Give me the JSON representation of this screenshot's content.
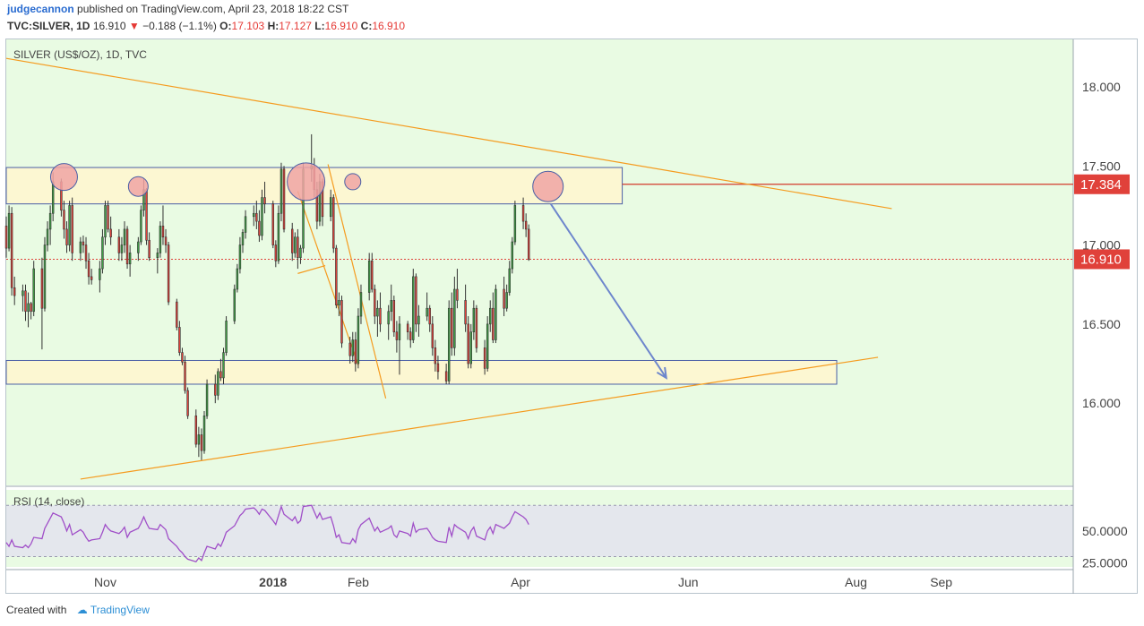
{
  "header": {
    "user": "judgecannon",
    "published": "published on TradingView.com, April 23, 2018 18:22 CST",
    "symbol_line": "TVC:SILVER, 1D",
    "last": "16.910",
    "change": "−0.188 (−1.1%)",
    "o_label": "O:",
    "o": "17.103",
    "h_label": "H:",
    "h": "17.127",
    "l_label": "L:",
    "l": "16.910",
    "c_label": "C:",
    "c": "16.910"
  },
  "footer": {
    "created_with": "Created with",
    "brand": "TradingView",
    "logo_icon": "tradingview-cloud-icon"
  },
  "colors": {
    "background": "#e9fbe3",
    "up_candle": "#3f9e45",
    "down_candle": "#e0413a",
    "trendline": "#f59b1f",
    "zone_fill": "#fcf7d2",
    "zone_border": "#4a5fa6",
    "resistance_line": "#d23b2b",
    "arrow": "#6d86cc",
    "circle_fill": "#f0a5a5",
    "rsi_line": "#a04fc8",
    "rsi_band": "#e4e7ed"
  },
  "chart_data": {
    "type": "candlestick",
    "title": "SILVER (US$/OZ), 1D, TVC",
    "y_ticks": [
      "18.000",
      "17.500",
      "17.000",
      "16.500",
      "16.000"
    ],
    "y_tick_values": [
      18.0,
      17.5,
      17.0,
      16.5,
      16.0
    ],
    "ylim": [
      15.48,
      18.3
    ],
    "x_ticks": [
      "Nov",
      "2018",
      "Feb",
      "Apr",
      "Jun",
      "Aug",
      "Sep"
    ],
    "x_tick_dates": [
      "2017-11-01",
      "2018-01-01",
      "2018-02-01",
      "2018-04-01",
      "2018-06-01",
      "2018-08-01",
      "2018-09-01"
    ],
    "date_range": [
      "2017-09-26",
      "2018-10-19"
    ],
    "price_labels": [
      {
        "value": 17.384,
        "text": "17.384",
        "color": "#e0413a"
      },
      {
        "value": 16.91,
        "text": "16.910",
        "color": "#e0413a"
      }
    ],
    "resistance_level": 17.384,
    "last_price": 16.91,
    "zones": [
      {
        "top": 17.49,
        "bottom": 17.26,
        "from": "2017-09-26",
        "to": "2018-05-08"
      },
      {
        "top": 16.27,
        "bottom": 16.12,
        "from": "2017-09-26",
        "to": "2018-07-25"
      }
    ],
    "trendlines": [
      {
        "from": [
          "2017-09-26",
          18.18
        ],
        "to": [
          "2018-08-14",
          17.23
        ]
      },
      {
        "from": [
          "2017-10-23",
          15.52
        ],
        "to": [
          "2018-08-09",
          16.29
        ]
      },
      {
        "from": [
          "2018-01-10",
          16.82
        ],
        "to": [
          "2018-01-20",
          16.87
        ]
      },
      {
        "from": [
          "2018-01-21",
          17.51
        ],
        "to": [
          "2018-02-11",
          16.03
        ]
      },
      {
        "from": [
          "2018-01-10",
          17.34
        ],
        "to": [
          "2018-02-01",
          16.24
        ]
      }
    ],
    "arrow": {
      "from": [
        "2018-04-12",
        17.26
      ],
      "to": [
        "2018-05-24",
        16.16
      ]
    },
    "circles": [
      {
        "date": "2017-10-17",
        "value": 17.43,
        "r": 15
      },
      {
        "date": "2017-11-13",
        "value": 17.37,
        "r": 11
      },
      {
        "date": "2018-01-13",
        "value": 17.4,
        "r": 21
      },
      {
        "date": "2018-01-30",
        "value": 17.4,
        "r": 9
      },
      {
        "date": "2018-04-11",
        "value": 17.37,
        "r": 17
      }
    ],
    "candles": {
      "start": "2017-09-26",
      "ohlc": [
        [
          17.12,
          17.18,
          16.92,
          16.98
        ],
        [
          16.98,
          17.25,
          16.96,
          17.2
        ],
        [
          17.2,
          17.24,
          16.68,
          16.73
        ],
        [
          16.73,
          16.8,
          16.62,
          16.68
        ],
        [
          16.68,
          16.75,
          16.58,
          16.71
        ],
        [
          16.71,
          16.75,
          16.52,
          16.58
        ],
        [
          16.58,
          16.7,
          16.48,
          16.63
        ],
        [
          16.63,
          16.64,
          16.53,
          16.58
        ],
        [
          16.58,
          16.9,
          16.55,
          16.85
        ],
        [
          16.85,
          16.92,
          16.34,
          16.6
        ],
        [
          16.6,
          17.05,
          16.58,
          17.0
        ],
        [
          17.0,
          17.15,
          16.96,
          17.1
        ],
        [
          17.1,
          17.25,
          17.0,
          17.2
        ],
        [
          17.2,
          17.46,
          17.15,
          17.4
        ],
        [
          17.4,
          17.42,
          17.18,
          17.22
        ],
        [
          17.22,
          17.28,
          17.04,
          17.1
        ],
        [
          17.1,
          17.15,
          16.95,
          17.0
        ],
        [
          17.0,
          17.28,
          16.96,
          17.25
        ],
        [
          17.25,
          17.3,
          16.9,
          16.95
        ],
        [
          16.95,
          17.05,
          16.9,
          17.02
        ],
        [
          17.02,
          17.06,
          16.95,
          17.0
        ],
        [
          17.0,
          17.05,
          16.85,
          16.9
        ],
        [
          16.9,
          16.95,
          16.75,
          16.8
        ],
        [
          16.8,
          16.85,
          16.75,
          16.78
        ],
        [
          16.78,
          16.9,
          16.7,
          16.85
        ],
        [
          16.85,
          17.1,
          16.82,
          17.05
        ],
        [
          17.05,
          17.28,
          17.0,
          17.25
        ],
        [
          17.25,
          17.28,
          17.08,
          17.1
        ],
        [
          17.1,
          17.18,
          17.0,
          17.05
        ],
        [
          17.05,
          17.1,
          16.9,
          16.95
        ],
        [
          16.95,
          17.05,
          16.9,
          17.0
        ],
        [
          17.0,
          17.15,
          16.95,
          17.1
        ],
        [
          17.1,
          17.12,
          16.85,
          16.88
        ],
        [
          16.88,
          17.0,
          16.8,
          16.95
        ],
        [
          16.95,
          17.05,
          16.9,
          17.02
        ],
        [
          17.02,
          17.25,
          17.0,
          17.22
        ],
        [
          17.22,
          17.42,
          17.18,
          17.35
        ],
        [
          17.35,
          17.36,
          17.0,
          17.03
        ],
        [
          17.03,
          17.08,
          16.9,
          16.92
        ],
        [
          16.92,
          16.98,
          16.82,
          16.95
        ],
        [
          16.95,
          17.15,
          16.92,
          17.12
        ],
        [
          17.12,
          17.25,
          17.0,
          17.05
        ],
        [
          17.05,
          17.1,
          16.95,
          17.0
        ],
        [
          17.0,
          17.02,
          16.62,
          16.64
        ],
        [
          16.64,
          16.66,
          16.46,
          16.48
        ],
        [
          16.48,
          16.52,
          16.3,
          16.32
        ],
        [
          16.32,
          16.35,
          16.24,
          16.26
        ],
        [
          16.26,
          16.3,
          16.06,
          16.08
        ],
        [
          16.08,
          16.1,
          15.9,
          15.92
        ],
        [
          15.92,
          15.96,
          15.72,
          15.74
        ],
        [
          15.74,
          15.85,
          15.66,
          15.8
        ],
        [
          15.8,
          15.84,
          15.64,
          15.7
        ],
        [
          15.7,
          15.95,
          15.68,
          15.92
        ],
        [
          15.92,
          16.15,
          15.9,
          16.12
        ],
        [
          16.12,
          16.18,
          16.0,
          16.05
        ],
        [
          16.05,
          16.22,
          16.02,
          16.2
        ],
        [
          16.2,
          16.28,
          16.14,
          16.16
        ],
        [
          16.16,
          16.35,
          16.12,
          16.32
        ],
        [
          16.32,
          16.55,
          16.3,
          16.52
        ],
        [
          16.52,
          16.75,
          16.5,
          16.72
        ],
        [
          16.72,
          16.88,
          16.7,
          16.85
        ],
        [
          16.85,
          17.05,
          16.82,
          17.0
        ],
        [
          17.0,
          17.1,
          16.95,
          17.08
        ],
        [
          17.08,
          17.22,
          17.04,
          17.18
        ],
        [
          17.18,
          17.25,
          17.12,
          17.2
        ],
        [
          17.2,
          17.28,
          17.1,
          17.15
        ],
        [
          17.15,
          17.22,
          17.02,
          17.06
        ],
        [
          17.06,
          17.35,
          17.03,
          17.3
        ],
        [
          17.3,
          17.4,
          17.2,
          17.26
        ],
        [
          17.26,
          17.28,
          16.98,
          17.0
        ],
        [
          17.0,
          17.03,
          16.86,
          16.9
        ],
        [
          16.9,
          17.25,
          16.88,
          17.2
        ],
        [
          17.2,
          17.52,
          17.15,
          17.48
        ],
        [
          17.48,
          17.5,
          17.08,
          17.1
        ],
        [
          17.1,
          17.14,
          16.9,
          16.95
        ],
        [
          16.95,
          17.08,
          16.92,
          17.05
        ],
        [
          17.05,
          17.1,
          16.85,
          16.92
        ],
        [
          16.92,
          17.0,
          16.88,
          16.98
        ],
        [
          16.98,
          17.52,
          16.95,
          17.48
        ],
        [
          17.48,
          17.7,
          17.4,
          17.5
        ],
        [
          17.5,
          17.55,
          17.3,
          17.35
        ],
        [
          17.35,
          17.4,
          17.1,
          17.15
        ],
        [
          17.15,
          17.45,
          17.12,
          17.4
        ],
        [
          17.4,
          17.42,
          17.12,
          17.18
        ],
        [
          17.18,
          17.35,
          17.15,
          17.3
        ],
        [
          17.3,
          17.32,
          16.95,
          16.98
        ],
        [
          16.98,
          17.0,
          16.6,
          16.62
        ],
        [
          16.62,
          16.7,
          16.55,
          16.65
        ],
        [
          16.65,
          16.68,
          16.35,
          16.38
        ],
        [
          16.38,
          16.42,
          16.25,
          16.3
        ],
        [
          16.3,
          16.45,
          16.26,
          16.4
        ],
        [
          16.4,
          16.45,
          16.2,
          16.25
        ],
        [
          16.25,
          16.6,
          16.22,
          16.55
        ],
        [
          16.55,
          16.75,
          16.5,
          16.7
        ],
        [
          16.7,
          16.95,
          16.65,
          16.9
        ],
        [
          16.9,
          16.95,
          16.7,
          16.72
        ],
        [
          16.72,
          16.75,
          16.5,
          16.55
        ],
        [
          16.55,
          16.65,
          16.42,
          16.6
        ],
        [
          16.6,
          16.7,
          16.45,
          16.5
        ],
        [
          16.5,
          16.62,
          16.4,
          16.58
        ],
        [
          16.58,
          16.75,
          16.52,
          16.65
        ],
        [
          16.65,
          16.68,
          16.42,
          16.45
        ],
        [
          16.45,
          16.52,
          16.32,
          16.4
        ],
        [
          16.4,
          16.55,
          16.18,
          16.5
        ],
        [
          16.5,
          16.52,
          16.4,
          16.45
        ],
        [
          16.45,
          16.48,
          16.35,
          16.4
        ],
        [
          16.4,
          16.85,
          16.38,
          16.8
        ],
        [
          16.8,
          16.82,
          16.45,
          16.5
        ],
        [
          16.5,
          16.62,
          16.42,
          16.55
        ],
        [
          16.55,
          16.7,
          16.52,
          16.6
        ],
        [
          16.6,
          16.62,
          16.45,
          16.5
        ],
        [
          16.5,
          16.55,
          16.3,
          16.35
        ],
        [
          16.35,
          16.4,
          16.2,
          16.25
        ],
        [
          16.25,
          16.3,
          16.15,
          16.2
        ],
        [
          16.2,
          16.25,
          16.12,
          16.14
        ],
        [
          16.14,
          16.65,
          16.12,
          16.6
        ],
        [
          16.6,
          16.7,
          16.3,
          16.35
        ],
        [
          16.35,
          16.8,
          16.3,
          16.72
        ],
        [
          16.72,
          16.85,
          16.6,
          16.65
        ],
        [
          16.65,
          16.75,
          16.45,
          16.5
        ],
        [
          16.5,
          16.55,
          16.22,
          16.25
        ],
        [
          16.25,
          16.5,
          16.22,
          16.45
        ],
        [
          16.45,
          16.65,
          16.4,
          16.6
        ],
        [
          16.6,
          16.62,
          16.32,
          16.35
        ],
        [
          16.35,
          16.4,
          16.18,
          16.22
        ],
        [
          16.22,
          16.55,
          16.2,
          16.5
        ],
        [
          16.5,
          16.65,
          16.45,
          16.6
        ],
        [
          16.6,
          16.7,
          16.38,
          16.4
        ],
        [
          16.4,
          16.75,
          16.38,
          16.72
        ],
        [
          16.72,
          16.8,
          16.55,
          16.6
        ],
        [
          16.6,
          16.75,
          16.58,
          16.7
        ],
        [
          16.7,
          16.9,
          16.68,
          16.85
        ],
        [
          16.85,
          17.05,
          16.82,
          17.02
        ],
        [
          17.02,
          17.28,
          17.0,
          17.25
        ],
        [
          17.25,
          17.3,
          17.1,
          17.15
        ],
        [
          17.15,
          17.2,
          17.05,
          17.1
        ],
        [
          17.1,
          17.13,
          16.9,
          16.91
        ]
      ]
    },
    "rsi": {
      "label": "RSI (14, close)",
      "y_ticks": [
        "50.0000",
        "25.0000"
      ],
      "y_tick_values": [
        50,
        25
      ],
      "ylim": [
        22,
        82
      ],
      "band": [
        30,
        70
      ],
      "values": [
        41,
        38,
        43,
        38,
        37,
        39,
        37,
        40,
        45,
        44,
        52,
        56,
        60,
        64,
        61,
        56,
        50,
        55,
        47,
        51,
        49,
        45,
        42,
        43,
        44,
        49,
        55,
        52,
        50,
        48,
        50,
        53,
        45,
        49,
        52,
        56,
        61,
        56,
        52,
        51,
        55,
        53,
        51,
        44,
        38,
        35,
        33,
        30,
        28,
        26,
        29,
        27,
        33,
        38,
        36,
        40,
        38,
        43,
        49,
        54,
        58,
        62,
        64,
        67,
        68,
        66,
        63,
        67,
        66,
        58,
        55,
        62,
        69,
        63,
        58,
        61,
        56,
        58,
        69,
        70,
        65,
        60,
        64,
        59,
        61,
        54,
        45,
        47,
        41,
        40,
        44,
        41,
        51,
        55,
        60,
        55,
        50,
        53,
        49,
        52,
        54,
        47,
        45,
        50,
        48,
        46,
        56,
        49,
        51,
        52,
        49,
        45,
        43,
        42,
        41,
        53,
        46,
        55,
        53,
        49,
        44,
        50,
        53,
        46,
        43,
        50,
        53,
        48,
        55,
        52,
        54,
        56,
        61,
        65,
        61,
        59,
        55
      ]
    }
  }
}
